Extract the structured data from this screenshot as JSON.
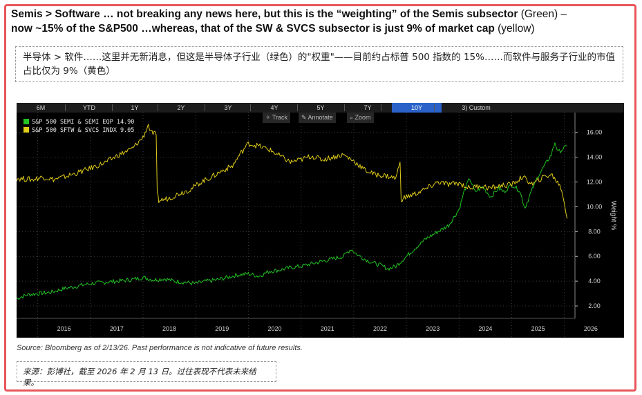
{
  "title": {
    "line1_bold": "Semis > Software … not breaking any news here, but this is the “weighting” of the Semis subsector",
    "green_note": " (Green) –",
    "line2_bold": "now ~15% of the S&P500 …whereas, that of the SW & SVCS subsector is just 9% of market cap",
    "yellow_note": " (yellow)"
  },
  "title_cn": "半导体 > 软件……这里并无新消息，但这是半导体子行业（绿色）的\"权重\"——目前约占标普 500 指数的 15%……而软件与服务子行业的市值占比仅为 9%（黄色）",
  "toolbar": {
    "tabs": [
      "6M",
      "YTD",
      "1Y",
      "2Y",
      "3Y",
      "4Y",
      "5Y",
      "7Y",
      "10Y",
      "3) Custom"
    ],
    "active_tab": "10Y",
    "tools": [
      "Track",
      "Annotate",
      "Zoom"
    ]
  },
  "source": "Source: Bloomberg as of 2/13/26. Past performance is not indicative of future results.",
  "source_cn": "来源：彭博社，截至 2026 年 2 月 13 日。过往表现不代表未来结果。",
  "chart_data": {
    "type": "line",
    "ylabel": "Weight %",
    "ylim": [
      1.0,
      17.6
    ],
    "yticks": [
      "2.00",
      "4.00",
      "6.00",
      "8.00",
      "10.00",
      "12.00",
      "14.00",
      "16.00"
    ],
    "xlim": [
      2015.6,
      2026.2
    ],
    "xticks": [
      "2016",
      "2017",
      "2018",
      "2019",
      "2020",
      "2021",
      "2022",
      "2023",
      "2024",
      "2025",
      "2026"
    ],
    "grid": true,
    "legend_position": "top-left",
    "series": [
      {
        "name": "S&P 500 SEMI & SEMI EQP",
        "last_value": "14.90",
        "color": "#22c422",
        "points": [
          [
            2015.6,
            2.6
          ],
          [
            2015.8,
            2.9
          ],
          [
            2016.0,
            3.0
          ],
          [
            2016.25,
            3.1
          ],
          [
            2016.5,
            3.4
          ],
          [
            2016.75,
            3.6
          ],
          [
            2017.0,
            3.8
          ],
          [
            2017.25,
            3.9
          ],
          [
            2017.5,
            4.0
          ],
          [
            2017.75,
            4.1
          ],
          [
            2018.0,
            4.3
          ],
          [
            2018.2,
            4.1
          ],
          [
            2018.4,
            4.2
          ],
          [
            2018.6,
            4.0
          ],
          [
            2018.8,
            3.9
          ],
          [
            2019.0,
            3.8
          ],
          [
            2019.2,
            4.0
          ],
          [
            2019.4,
            4.1
          ],
          [
            2019.6,
            4.3
          ],
          [
            2019.8,
            4.5
          ],
          [
            2020.0,
            4.6
          ],
          [
            2020.2,
            4.4
          ],
          [
            2020.4,
            4.8
          ],
          [
            2020.6,
            4.9
          ],
          [
            2020.8,
            5.1
          ],
          [
            2021.0,
            5.2
          ],
          [
            2021.2,
            5.4
          ],
          [
            2021.4,
            5.6
          ],
          [
            2021.6,
            5.8
          ],
          [
            2021.8,
            6.0
          ],
          [
            2021.95,
            6.6
          ],
          [
            2022.05,
            6.2
          ],
          [
            2022.2,
            5.8
          ],
          [
            2022.35,
            5.5
          ],
          [
            2022.5,
            5.3
          ],
          [
            2022.65,
            5.0
          ],
          [
            2022.8,
            5.2
          ],
          [
            2022.9,
            5.6
          ],
          [
            2023.0,
            6.0
          ],
          [
            2023.2,
            6.8
          ],
          [
            2023.4,
            7.5
          ],
          [
            2023.6,
            8.0
          ],
          [
            2023.8,
            8.5
          ],
          [
            2024.0,
            9.8
          ],
          [
            2024.1,
            11.3
          ],
          [
            2024.2,
            12.3
          ],
          [
            2024.3,
            11.2
          ],
          [
            2024.45,
            11.6
          ],
          [
            2024.6,
            10.8
          ],
          [
            2024.75,
            11.5
          ],
          [
            2024.85,
            11.2
          ],
          [
            2025.0,
            11.8
          ],
          [
            2025.15,
            11.3
          ],
          [
            2025.25,
            9.9
          ],
          [
            2025.35,
            11.0
          ],
          [
            2025.5,
            12.5
          ],
          [
            2025.65,
            13.5
          ],
          [
            2025.75,
            14.2
          ],
          [
            2025.82,
            15.2
          ],
          [
            2025.88,
            14.4
          ],
          [
            2025.95,
            14.6
          ],
          [
            2026.05,
            14.9
          ]
        ]
      },
      {
        "name": "S&P 500 SFTW & SVCS INDX",
        "last_value": "9.05",
        "color": "#e0cc1a",
        "points": [
          [
            2015.6,
            12.3
          ],
          [
            2015.9,
            12.2
          ],
          [
            2016.1,
            12.4
          ],
          [
            2016.3,
            12.2
          ],
          [
            2016.5,
            12.4
          ],
          [
            2016.8,
            12.8
          ],
          [
            2017.0,
            13.1
          ],
          [
            2017.3,
            13.6
          ],
          [
            2017.5,
            14.1
          ],
          [
            2017.8,
            14.7
          ],
          [
            2018.0,
            15.6
          ],
          [
            2018.1,
            16.6
          ],
          [
            2018.15,
            16.0
          ],
          [
            2018.25,
            15.8
          ],
          [
            2018.27,
            11.0
          ],
          [
            2018.3,
            10.5
          ],
          [
            2018.5,
            10.7
          ],
          [
            2018.7,
            11.1
          ],
          [
            2018.9,
            11.4
          ],
          [
            2019.1,
            12.0
          ],
          [
            2019.3,
            12.4
          ],
          [
            2019.5,
            12.9
          ],
          [
            2019.7,
            13.3
          ],
          [
            2019.85,
            14.3
          ],
          [
            2020.0,
            15.1
          ],
          [
            2020.2,
            14.9
          ],
          [
            2020.4,
            14.6
          ],
          [
            2020.6,
            14.1
          ],
          [
            2020.8,
            13.6
          ],
          [
            2021.0,
            13.8
          ],
          [
            2021.2,
            14.1
          ],
          [
            2021.4,
            13.8
          ],
          [
            2021.6,
            14.0
          ],
          [
            2021.8,
            14.2
          ],
          [
            2022.0,
            13.7
          ],
          [
            2022.2,
            13.0
          ],
          [
            2022.4,
            12.6
          ],
          [
            2022.6,
            12.5
          ],
          [
            2022.8,
            12.3
          ],
          [
            2022.88,
            13.6
          ],
          [
            2022.9,
            10.6
          ],
          [
            2023.0,
            10.8
          ],
          [
            2023.2,
            11.1
          ],
          [
            2023.4,
            11.5
          ],
          [
            2023.6,
            12.0
          ],
          [
            2023.8,
            11.8
          ],
          [
            2024.0,
            11.9
          ],
          [
            2024.2,
            11.5
          ],
          [
            2024.4,
            11.7
          ],
          [
            2024.6,
            11.5
          ],
          [
            2024.8,
            11.7
          ],
          [
            2025.0,
            11.8
          ],
          [
            2025.2,
            12.4
          ],
          [
            2025.4,
            11.8
          ],
          [
            2025.6,
            12.4
          ],
          [
            2025.75,
            12.6
          ],
          [
            2025.85,
            12.1
          ],
          [
            2025.95,
            11.4
          ],
          [
            2026.0,
            10.2
          ],
          [
            2026.05,
            9.05
          ]
        ]
      }
    ]
  }
}
